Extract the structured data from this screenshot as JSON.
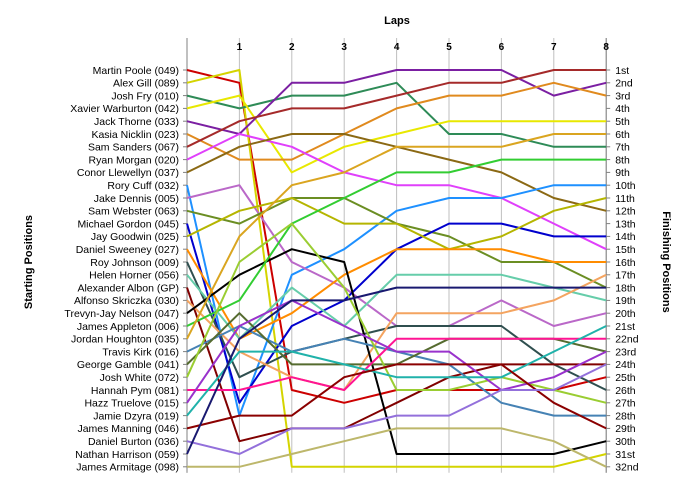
{
  "chart_data": {
    "type": "line",
    "title": "",
    "xlabel": "Laps",
    "ylabel_left": "Starting Positions",
    "ylabel_right": "Finishing Positions",
    "x": [
      0,
      1,
      2,
      3,
      4,
      5,
      6,
      7,
      8
    ],
    "x_tick_labels": [
      "1",
      "2",
      "3",
      "4",
      "5",
      "6",
      "7",
      "8"
    ],
    "ylim": [
      1,
      32
    ],
    "y_inverted": true,
    "grid": "vertical",
    "finishing_labels": [
      "1st",
      "2nd",
      "3rd",
      "4th",
      "5th",
      "6th",
      "7th",
      "8th",
      "9th",
      "10th",
      "11th",
      "12th",
      "13th",
      "14th",
      "15th",
      "16th",
      "17th",
      "18th",
      "19th",
      "20th",
      "21st",
      "22nd",
      "23rd",
      "24th",
      "25th",
      "26th",
      "27th",
      "28th",
      "29th",
      "30th",
      "31st",
      "32nd"
    ],
    "series": [
      {
        "name": "Martin Poole (049)",
        "color": "#cc0000",
        "values": [
          1,
          2,
          26,
          27,
          26,
          26,
          26,
          26,
          25
        ]
      },
      {
        "name": "Alex Gill (089)",
        "color": "#d4d400",
        "values": [
          2,
          1,
          32,
          32,
          32,
          32,
          32,
          32,
          31
        ]
      },
      {
        "name": "Josh Fry (010)",
        "color": "#2e8b57",
        "values": [
          3,
          4,
          3,
          3,
          2,
          6,
          6,
          7,
          7
        ]
      },
      {
        "name": "Xavier Warburton (042)",
        "color": "#e8e800",
        "values": [
          4,
          3,
          9,
          7,
          6,
          5,
          5,
          5,
          5
        ]
      },
      {
        "name": "Jack Thorne (033)",
        "color": "#7b1fa2",
        "values": [
          5,
          6,
          2,
          2,
          1,
          1,
          1,
          3,
          2
        ]
      },
      {
        "name": "Kasia Nicklin (023)",
        "color": "#e08a1e",
        "values": [
          6,
          8,
          8,
          6,
          4,
          3,
          3,
          2,
          3
        ]
      },
      {
        "name": "Sam Sanders (067)",
        "color": "#a52a2a",
        "values": [
          7,
          5,
          4,
          4,
          3,
          2,
          2,
          1,
          1
        ]
      },
      {
        "name": "Ryan Morgan (020)",
        "color": "#e040fb",
        "values": [
          8,
          6,
          7,
          9,
          10,
          10,
          11,
          13,
          15
        ]
      },
      {
        "name": "Conor Llewellyn (037)",
        "color": "#8b6914",
        "values": [
          9,
          7,
          6,
          6,
          7,
          8,
          9,
          11,
          12
        ]
      },
      {
        "name": "Rory Cuff (032)",
        "color": "#1e90ff",
        "values": [
          10,
          28,
          17,
          15,
          12,
          11,
          11,
          10,
          10
        ]
      },
      {
        "name": "Jake Dennis (005)",
        "color": "#ba68c8",
        "values": [
          11,
          10,
          16,
          18,
          21,
          21,
          19,
          21,
          20
        ]
      },
      {
        "name": "Sam Webster (063)",
        "color": "#6b8e23",
        "values": [
          12,
          13,
          11,
          11,
          13,
          14,
          16,
          16,
          18
        ]
      },
      {
        "name": "Michael Gordon (045)",
        "color": "#0000cd",
        "values": [
          13,
          27,
          21,
          19,
          15,
          13,
          13,
          14,
          14
        ]
      },
      {
        "name": "Jay Goodwin (025)",
        "color": "#b5b500",
        "values": [
          14,
          12,
          11,
          13,
          13,
          15,
          14,
          12,
          11
        ]
      },
      {
        "name": "Daniel Sweeney (027)",
        "color": "#ff8c00",
        "values": [
          15,
          22,
          20,
          17,
          15,
          15,
          15,
          16,
          16
        ]
      },
      {
        "name": "Roy Johnson (009)",
        "color": "#2f4f4f",
        "values": [
          16,
          25,
          23,
          22,
          21,
          21,
          21,
          24,
          26
        ]
      },
      {
        "name": "Helen Horner (056)",
        "color": "#66cdaa",
        "values": [
          17,
          22,
          18,
          21,
          17,
          17,
          17,
          18,
          19
        ]
      },
      {
        "name": "Alexander Albon (GP)",
        "color": "#800000",
        "values": [
          18,
          30,
          29,
          29,
          27,
          25,
          24,
          24,
          24
        ]
      },
      {
        "name": "Alfonso Skriczka (030)",
        "color": "#f4a460",
        "values": [
          19,
          23,
          25,
          26,
          20,
          20,
          20,
          19,
          17
        ]
      },
      {
        "name": "Trevyn-Jay Nelson (047)",
        "color": "#000000",
        "values": [
          20,
          17,
          15,
          16,
          31,
          31,
          31,
          31,
          30
        ]
      },
      {
        "name": "James Appleton (006)",
        "color": "#32cd32",
        "values": [
          21,
          19,
          13,
          11,
          9,
          9,
          8,
          8,
          8
        ]
      },
      {
        "name": "Jordan Houghton (035)",
        "color": "#daa520",
        "values": [
          22,
          14,
          10,
          9,
          7,
          7,
          7,
          6,
          6
        ]
      },
      {
        "name": "Travis Kirk (016)",
        "color": "#4682b4",
        "values": [
          23,
          21,
          23,
          22,
          23,
          24,
          27,
          28,
          28
        ]
      },
      {
        "name": "George Gamble (041)",
        "color": "#556b2f",
        "values": [
          24,
          20,
          24,
          24,
          24,
          22,
          22,
          22,
          23
        ]
      },
      {
        "name": "Josh White (072)",
        "color": "#9acd32",
        "values": [
          25,
          16,
          13,
          18,
          26,
          26,
          25,
          26,
          27
        ]
      },
      {
        "name": "Hannah Pym (081)",
        "color": "#ff1493",
        "values": [
          26,
          26,
          25,
          26,
          22,
          22,
          22,
          22,
          22
        ]
      },
      {
        "name": "Hazz Truelove (015)",
        "color": "#9932cc",
        "values": [
          27,
          21,
          19,
          21,
          23,
          23,
          26,
          25,
          23
        ]
      },
      {
        "name": "Jamie Dzyra (019)",
        "color": "#20b2aa",
        "values": [
          28,
          23,
          23,
          24,
          25,
          25,
          25,
          23,
          21
        ]
      },
      {
        "name": "James Manning (046)",
        "color": "#8b0000",
        "values": [
          29,
          28,
          28,
          25,
          24,
          24,
          24,
          27,
          29
        ]
      },
      {
        "name": "Daniel Burton (036)",
        "color": "#9370db",
        "values": [
          30,
          31,
          29,
          29,
          28,
          28,
          26,
          26,
          24
        ]
      },
      {
        "name": "Nathan Harrison (059)",
        "color": "#191970",
        "values": [
          31,
          22,
          19,
          19,
          18,
          18,
          18,
          18,
          18
        ]
      },
      {
        "name": "James Armitage (098)",
        "color": "#bdb76b",
        "values": [
          32,
          32,
          31,
          30,
          29,
          29,
          29,
          30,
          32
        ]
      }
    ]
  }
}
